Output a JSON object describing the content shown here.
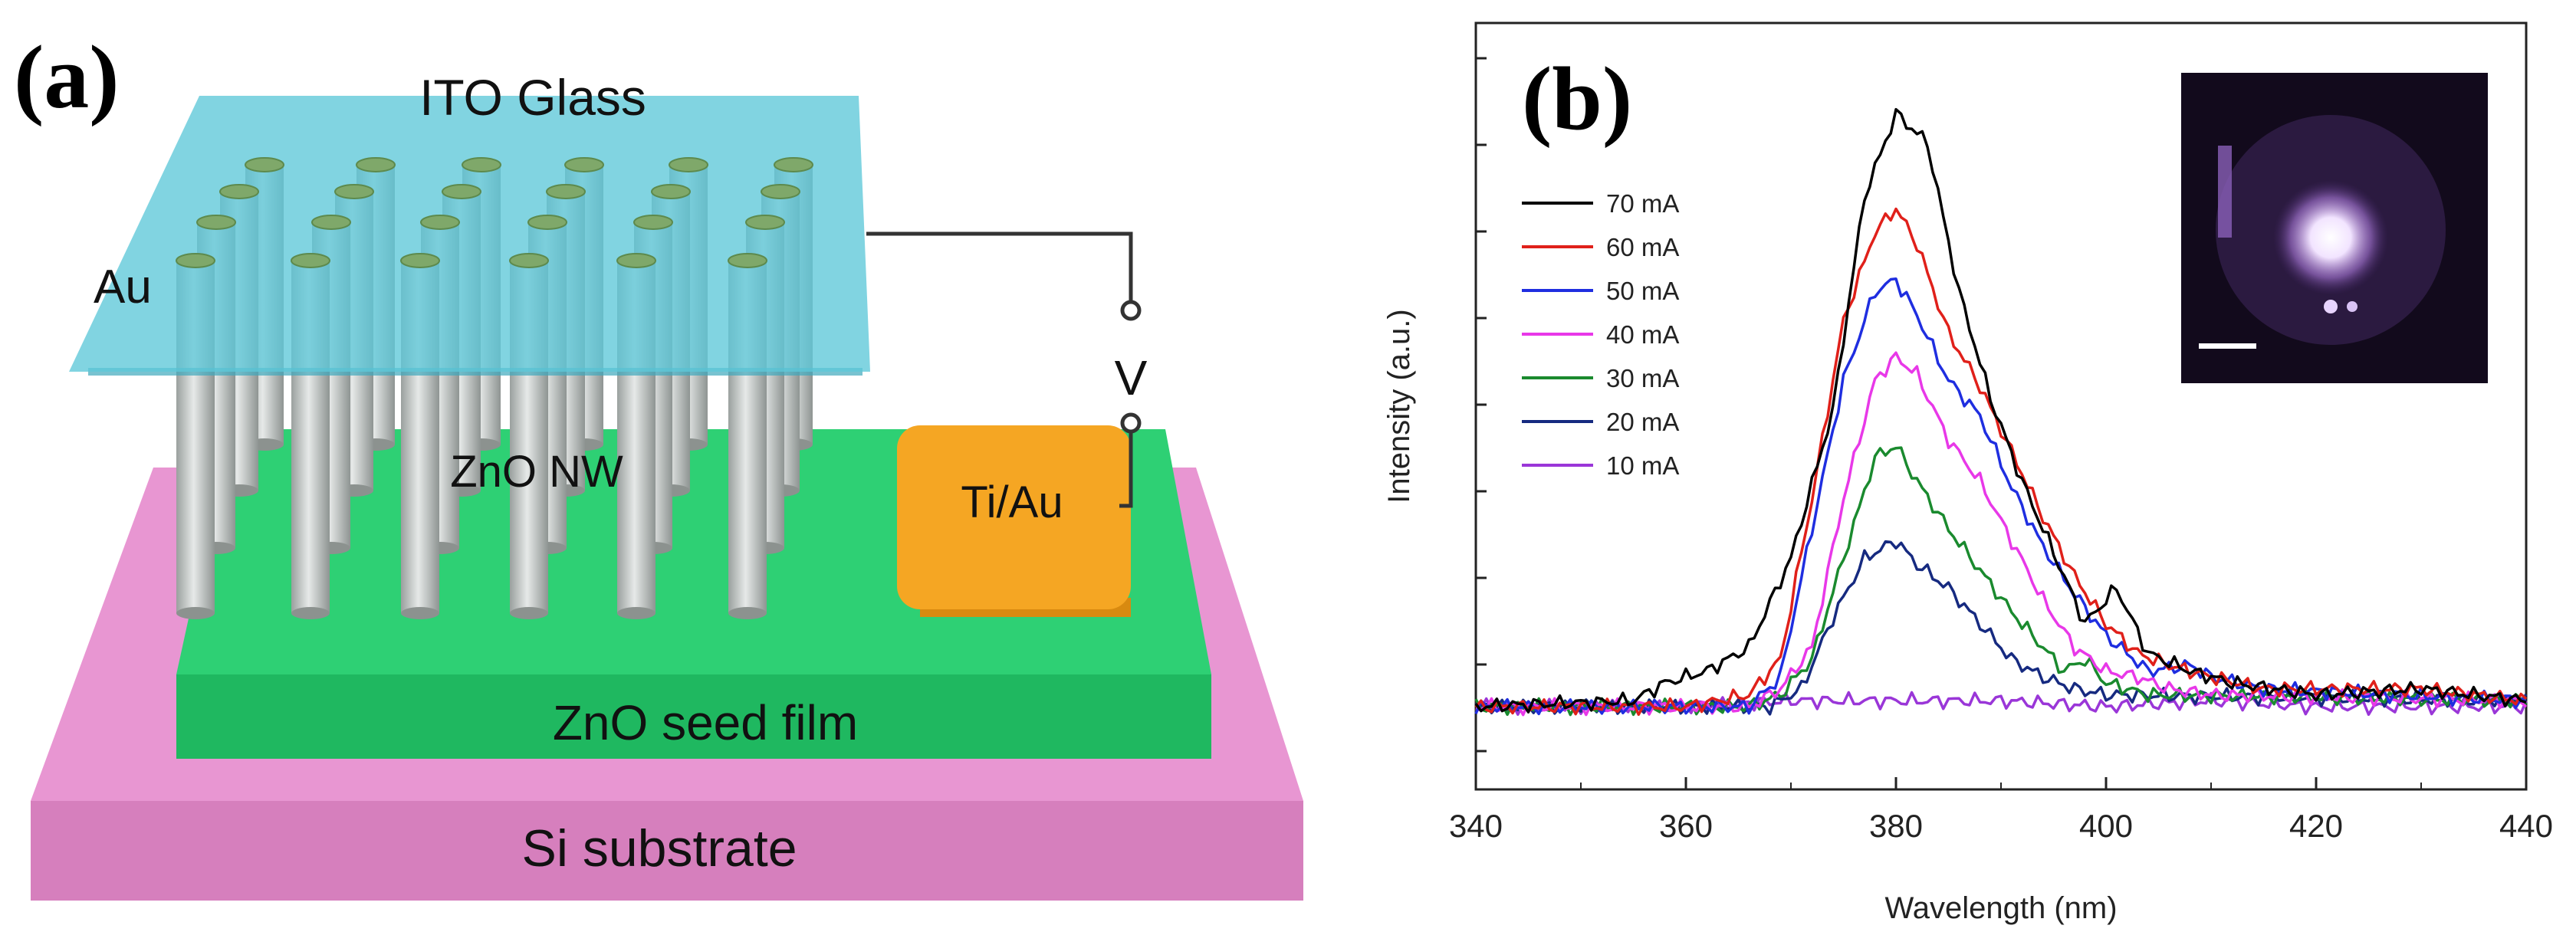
{
  "panel_a": {
    "label": "(a)",
    "ito_glass": "ITO Glass",
    "au": "Au",
    "zno_nw": "ZnO NW",
    "ti_au": "Ti/Au",
    "voltage": "V",
    "seed_film": "ZnO seed film",
    "substrate": "Si substrate",
    "colors": {
      "ito": "#5ec8d8",
      "seed": "#22c96a",
      "substrate": "#e08ac8",
      "contact": "#f5a623",
      "nanowire": "#b8bdbb"
    }
  },
  "panel_b": {
    "label": "(b)"
  },
  "chart_data": {
    "type": "line",
    "title": "",
    "xlabel": "Wavelength (nm)",
    "ylabel": "Intensity (a.u.)",
    "xlim": [
      340,
      440
    ],
    "ylim": [
      0,
      1
    ],
    "x_ticks": [
      340,
      360,
      380,
      400,
      420,
      440
    ],
    "y_ticks_labeled": false,
    "legend_position": "top-left",
    "inset": "photograph of emission",
    "series": [
      {
        "name": "70 mA",
        "color": "#000000",
        "points": [
          [
            340,
            0.0
          ],
          [
            355,
            0.01
          ],
          [
            358,
            0.04
          ],
          [
            362,
            0.06
          ],
          [
            366,
            0.1
          ],
          [
            370,
            0.25
          ],
          [
            374,
            0.5
          ],
          [
            377,
            0.86
          ],
          [
            380,
            1.0
          ],
          [
            383,
            0.95
          ],
          [
            386,
            0.7
          ],
          [
            389,
            0.52
          ],
          [
            392,
            0.38
          ],
          [
            395,
            0.26
          ],
          [
            398,
            0.14
          ],
          [
            401,
            0.2
          ],
          [
            404,
            0.09
          ],
          [
            408,
            0.06
          ],
          [
            412,
            0.04
          ],
          [
            420,
            0.02
          ],
          [
            430,
            0.03
          ],
          [
            440,
            0.01
          ]
        ]
      },
      {
        "name": "60 mA",
        "color": "#e0201a",
        "points": [
          [
            340,
            0.0
          ],
          [
            360,
            0.0
          ],
          [
            366,
            0.02
          ],
          [
            369,
            0.08
          ],
          [
            372,
            0.35
          ],
          [
            375,
            0.65
          ],
          [
            378,
            0.8
          ],
          [
            380,
            0.84
          ],
          [
            382,
            0.78
          ],
          [
            385,
            0.63
          ],
          [
            388,
            0.54
          ],
          [
            391,
            0.43
          ],
          [
            394,
            0.32
          ],
          [
            397,
            0.22
          ],
          [
            400,
            0.14
          ],
          [
            403,
            0.09
          ],
          [
            406,
            0.07
          ],
          [
            410,
            0.05
          ],
          [
            415,
            0.03
          ],
          [
            430,
            0.03
          ],
          [
            440,
            0.01
          ]
        ]
      },
      {
        "name": "50 mA",
        "color": "#1f2ee0",
        "points": [
          [
            340,
            0.0
          ],
          [
            366,
            0.0
          ],
          [
            369,
            0.05
          ],
          [
            372,
            0.3
          ],
          [
            375,
            0.55
          ],
          [
            378,
            0.7
          ],
          [
            380,
            0.72
          ],
          [
            382,
            0.66
          ],
          [
            385,
            0.55
          ],
          [
            388,
            0.49
          ],
          [
            391,
            0.37
          ],
          [
            394,
            0.27
          ],
          [
            397,
            0.19
          ],
          [
            400,
            0.12
          ],
          [
            404,
            0.06
          ],
          [
            408,
            0.07
          ],
          [
            410,
            0.05
          ],
          [
            415,
            0.03
          ],
          [
            440,
            0.01
          ]
        ]
      },
      {
        "name": "40 mA",
        "color": "#e838e8",
        "points": [
          [
            340,
            0.0
          ],
          [
            366,
            0.0
          ],
          [
            369,
            0.03
          ],
          [
            372,
            0.1
          ],
          [
            375,
            0.35
          ],
          [
            378,
            0.55
          ],
          [
            380,
            0.59
          ],
          [
            382,
            0.56
          ],
          [
            385,
            0.45
          ],
          [
            388,
            0.38
          ],
          [
            391,
            0.28
          ],
          [
            394,
            0.18
          ],
          [
            397,
            0.1
          ],
          [
            400,
            0.06
          ],
          [
            403,
            0.05
          ],
          [
            406,
            0.03
          ],
          [
            410,
            0.02
          ],
          [
            440,
            0.01
          ]
        ]
      },
      {
        "name": "30 mA",
        "color": "#1a8a2e",
        "points": [
          [
            340,
            0.0
          ],
          [
            366,
            0.0
          ],
          [
            369,
            0.02
          ],
          [
            372,
            0.08
          ],
          [
            375,
            0.25
          ],
          [
            378,
            0.42
          ],
          [
            380,
            0.44
          ],
          [
            382,
            0.38
          ],
          [
            385,
            0.3
          ],
          [
            388,
            0.23
          ],
          [
            391,
            0.16
          ],
          [
            394,
            0.1
          ],
          [
            396,
            0.06
          ],
          [
            398,
            0.08
          ],
          [
            400,
            0.04
          ],
          [
            404,
            0.02
          ],
          [
            440,
            0.01
          ]
        ]
      },
      {
        "name": "20 mA",
        "color": "#162a80",
        "points": [
          [
            340,
            0.0
          ],
          [
            368,
            0.0
          ],
          [
            371,
            0.03
          ],
          [
            374,
            0.15
          ],
          [
            377,
            0.25
          ],
          [
            380,
            0.28
          ],
          [
            382,
            0.24
          ],
          [
            385,
            0.2
          ],
          [
            388,
            0.14
          ],
          [
            391,
            0.08
          ],
          [
            394,
            0.05
          ],
          [
            397,
            0.03
          ],
          [
            400,
            0.02
          ],
          [
            440,
            0.01
          ]
        ]
      },
      {
        "name": "10 mA",
        "color": "#9a36d8",
        "points": [
          [
            340,
            0.0
          ],
          [
            350,
            0.0
          ],
          [
            360,
            0.0
          ],
          [
            370,
            0.01
          ],
          [
            380,
            0.01
          ],
          [
            390,
            0.01
          ],
          [
            400,
            0.0
          ],
          [
            410,
            0.01
          ],
          [
            420,
            0.0
          ],
          [
            430,
            0.0
          ],
          [
            440,
            0.0
          ]
        ]
      }
    ]
  }
}
